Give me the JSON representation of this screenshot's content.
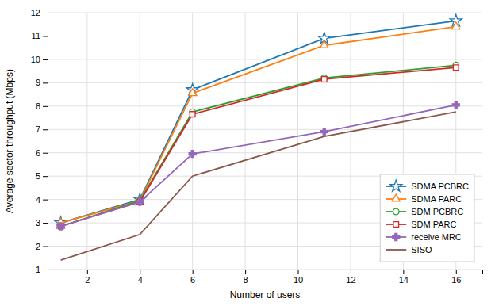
{
  "chart_data": {
    "type": "line",
    "x": [
      1,
      4,
      6,
      11,
      16
    ],
    "series": [
      {
        "name": "SDMA PCBRC",
        "marker": "star",
        "values": [
          3.0,
          4.0,
          8.7,
          10.9,
          11.65
        ]
      },
      {
        "name": "SDMA PARC",
        "marker": "triangle",
        "values": [
          3.0,
          3.95,
          8.55,
          10.6,
          11.4
        ]
      },
      {
        "name": "SDM PCBRC",
        "marker": "circle",
        "values": [
          2.85,
          3.95,
          7.75,
          9.2,
          9.75
        ]
      },
      {
        "name": "SDM PARC",
        "marker": "square",
        "values": [
          2.85,
          3.9,
          7.65,
          9.15,
          9.65
        ]
      },
      {
        "name": "receive MRC",
        "marker": "plus",
        "values": [
          2.85,
          3.9,
          5.95,
          6.9,
          8.05
        ]
      },
      {
        "name": "SISO",
        "values": [
          1.4,
          2.5,
          5.0,
          6.7,
          7.75
        ]
      }
    ],
    "xlabel": "Number of users",
    "ylabel": "Average sector throughput (Mbps)",
    "xlim": [
      0.5,
      17
    ],
    "ylim": [
      1,
      12
    ],
    "xticks": [
      2,
      4,
      6,
      8,
      10,
      12,
      14,
      16
    ],
    "yticks": [
      1,
      2,
      3,
      4,
      5,
      6,
      7,
      8,
      9,
      10,
      11,
      12
    ],
    "grid": true,
    "legend": "lower right"
  }
}
